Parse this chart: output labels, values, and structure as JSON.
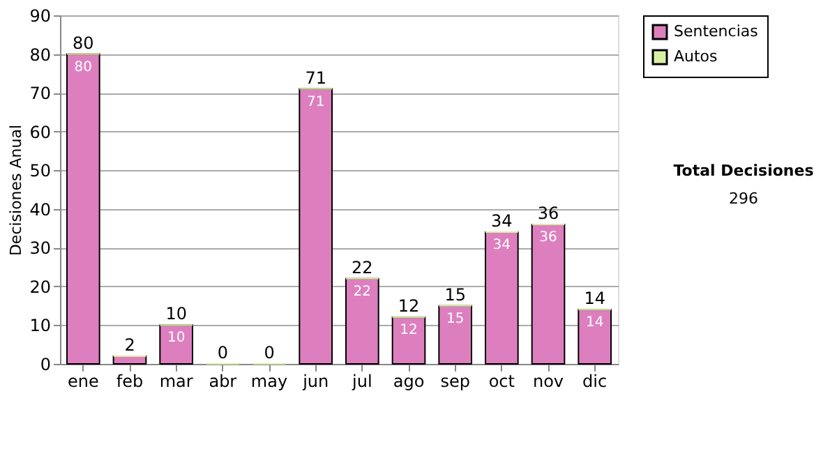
{
  "chart_data": {
    "type": "bar",
    "stacked": true,
    "ylabel": "Decisiones Anual",
    "categories": [
      "ene",
      "feb",
      "mar",
      "abr",
      "may",
      "jun",
      "jul",
      "ago",
      "sep",
      "oct",
      "nov",
      "dic"
    ],
    "series": [
      {
        "name": "Sentencias",
        "color": "#dd7fbf",
        "values": [
          80,
          2,
          10,
          0,
          0,
          71,
          22,
          12,
          15,
          34,
          36,
          14
        ],
        "value_labels": [
          "80",
          null,
          "10",
          null,
          null,
          "71",
          "22",
          "12",
          "15",
          "34",
          "36",
          "14"
        ]
      },
      {
        "name": "Autos",
        "color": "#d9f0a3",
        "values": [
          0,
          0,
          0,
          0,
          0,
          0,
          0,
          0,
          0,
          0,
          0,
          0
        ]
      }
    ],
    "totals": [
      "80",
      "2",
      "10",
      "0",
      "0",
      "71",
      "22",
      "12",
      "15",
      "34",
      "36",
      "14"
    ],
    "ylim": [
      0,
      90
    ],
    "yticks": [
      0,
      10,
      20,
      30,
      40,
      50,
      60,
      70,
      80,
      90
    ],
    "grid": "y",
    "legend": "right",
    "annotations": [
      "Total Decisiones",
      "296"
    ]
  }
}
